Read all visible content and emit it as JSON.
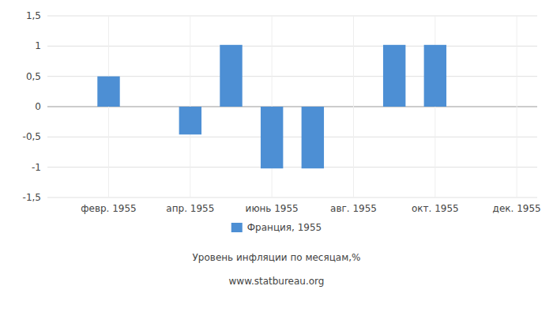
{
  "chart_data": {
    "type": "bar",
    "categories": [
      null,
      "февр. 1955",
      null,
      "апр. 1955",
      null,
      "июнь 1955",
      null,
      "авг. 1955",
      null,
      "окт. 1955",
      null,
      "дек. 1955"
    ],
    "series": [
      {
        "name": "Франция, 1955",
        "color": "#4d8fd4",
        "values": [
          0,
          0.5,
          0,
          -0.46,
          1.02,
          -1.02,
          -1.02,
          0,
          1.02,
          1.02,
          0,
          0
        ]
      }
    ],
    "ylim": [
      -1.5,
      1.5
    ],
    "yticks": [
      {
        "value": -1.5,
        "label": "-1,5"
      },
      -1,
      {
        "value": -0.5,
        "label": "-0,5"
      },
      0,
      {
        "value": 0.5,
        "label": "0,5"
      },
      1,
      {
        "value": 1.5,
        "label": "1,5"
      }
    ],
    "x_label": "Уровень инфляции по месяцам,%",
    "annotations": [
      "www.statbureau.org"
    ],
    "grid": true,
    "legend": "bottom"
  }
}
